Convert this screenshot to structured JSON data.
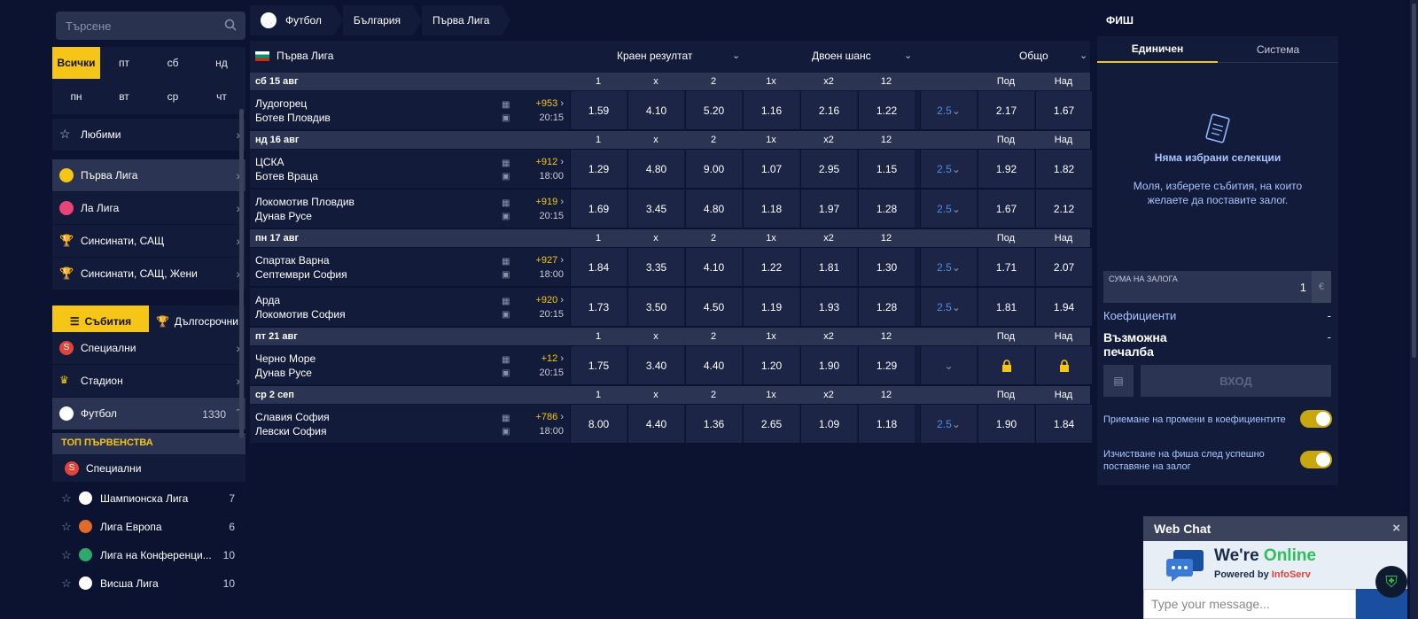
{
  "search": {
    "placeholder": "Търсене"
  },
  "days": [
    "Всички",
    "пт",
    "сб",
    "нд",
    "пн",
    "вт",
    "ср",
    "чт"
  ],
  "sidebar": {
    "favorites": "Любими",
    "items": [
      "Първа Лига",
      "Ла Лига",
      "Синсинати, САЩ",
      "Синсинати, САЩ, Жени"
    ],
    "tab_events": "Събития",
    "tab_long": "Дългосрочни",
    "specials": "Специални",
    "stadium": "Стадион",
    "football": "Футбол",
    "football_count": "1330",
    "top_header": "ТОП ПЪРВЕНСТВА",
    "top_special": "Специални",
    "leagues": [
      {
        "name": "Шампионска Лига",
        "count": "7"
      },
      {
        "name": "Лига Европа",
        "count": "6"
      },
      {
        "name": "Лига на Конференци...",
        "count": "10"
      },
      {
        "name": "Висша Лига",
        "count": "10"
      }
    ]
  },
  "breadcrumb": [
    "Футбол",
    "България",
    "Първа Лига"
  ],
  "table": {
    "league": "Първа Лига",
    "markets": [
      "Краен резултат",
      "Двоен шанс",
      "Общо"
    ],
    "col_heads": [
      "1",
      "x",
      "2",
      "1x",
      "x2",
      "12",
      "Под",
      "Над"
    ],
    "groups": [
      {
        "date": "сб 15 авг",
        "matches": [
          {
            "home": "Лудогорец",
            "away": "Ботев Пловдив",
            "plus": "+953",
            "time": "20:15",
            "odds": [
              "1.59",
              "4.10",
              "5.20",
              "1.16",
              "2.16",
              "1.22"
            ],
            "line": "2.5",
            "ou": [
              "2.17",
              "1.67"
            ]
          }
        ]
      },
      {
        "date": "нд 16 авг",
        "matches": [
          {
            "home": "ЦСКА",
            "away": "Ботев Враца",
            "plus": "+912",
            "time": "18:00",
            "odds": [
              "1.29",
              "4.80",
              "9.00",
              "1.07",
              "2.95",
              "1.15"
            ],
            "line": "2.5",
            "ou": [
              "1.92",
              "1.82"
            ]
          },
          {
            "home": "Локомотив Пловдив",
            "away": "Дунав Русе",
            "plus": "+919",
            "time": "20:15",
            "odds": [
              "1.69",
              "3.45",
              "4.80",
              "1.18",
              "1.97",
              "1.28"
            ],
            "line": "2.5",
            "ou": [
              "1.67",
              "2.12"
            ]
          }
        ]
      },
      {
        "date": "пн 17 авг",
        "matches": [
          {
            "home": "Спартак Варна",
            "away": "Септември София",
            "plus": "+927",
            "time": "18:00",
            "odds": [
              "1.84",
              "3.35",
              "4.10",
              "1.22",
              "1.81",
              "1.30"
            ],
            "line": "2.5",
            "ou": [
              "1.71",
              "2.07"
            ]
          },
          {
            "home": "Арда",
            "away": "Локомотив София",
            "plus": "+920",
            "time": "20:15",
            "odds": [
              "1.73",
              "3.50",
              "4.50",
              "1.19",
              "1.93",
              "1.28"
            ],
            "line": "2.5",
            "ou": [
              "1.81",
              "1.94"
            ]
          }
        ]
      },
      {
        "date": "пт 21 авг",
        "matches": [
          {
            "home": "Черно Море",
            "away": "Дунав Русе",
            "plus": "+12",
            "time": "20:15",
            "odds": [
              "1.75",
              "3.40",
              "4.40",
              "1.20",
              "1.90",
              "1.29"
            ],
            "line": "",
            "ou": [
              "locked",
              "locked"
            ]
          }
        ]
      },
      {
        "date": "ср 2 сеп",
        "matches": [
          {
            "home": "Славия София",
            "away": "Левски София",
            "plus": "+786",
            "time": "18:00",
            "odds": [
              "8.00",
              "4.40",
              "1.36",
              "2.65",
              "1.09",
              "1.18"
            ],
            "line": "2.5",
            "ou": [
              "1.90",
              "1.84"
            ]
          }
        ]
      }
    ]
  },
  "slip": {
    "title": "ФИШ",
    "tab_single": "Единичен",
    "tab_system": "Система",
    "empty_title": "Няма избрани селекции",
    "empty_text": "Моля, изберете събития, на които желаете да поставите залог.",
    "stake_label": "СУМА НА ЗАЛОГА",
    "stake_value": "1",
    "currency": "€",
    "coef_label": "Коефициенти",
    "coef_value": "-",
    "win_label": "Възможна печалба",
    "win_value": "-",
    "login": "ВХОД",
    "accept_label": "Приемане на промени в коефициентите",
    "clear_label": "Изчистване на фиша след успешно поставяне на залог"
  },
  "chat": {
    "title": "Web Chat",
    "close": "×",
    "online_a": "We're ",
    "online_b": "Online",
    "powered": "Powered by ",
    "brand": "InfoServ",
    "placeholder": "Type your message..."
  }
}
